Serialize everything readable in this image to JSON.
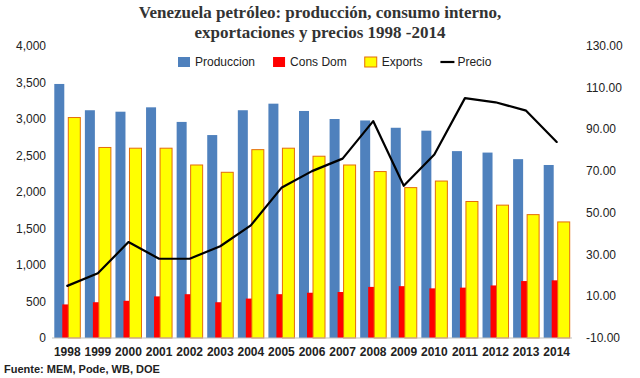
{
  "chart_data": {
    "type": "bar",
    "title": "Venezuela petróleo: producción, consumo interno, exportaciones y precios 1998 -2014",
    "source": "Fuente: MEM, Pode, WB, DOE",
    "categories": [
      "1998",
      "1999",
      "2000",
      "2001",
      "2002",
      "2003",
      "2004",
      "2005",
      "2006",
      "2007",
      "2008",
      "2009",
      "2010",
      "2011",
      "2012",
      "2013",
      "2014"
    ],
    "ylim": [
      0,
      4000
    ],
    "yticks": [
      0,
      500,
      {
        "value": 1000,
        "label": "1,000"
      },
      {
        "value": 1500,
        "label": "1,500"
      },
      {
        "value": 2000,
        "label": "2,000"
      },
      {
        "value": 2500,
        "label": "2,500"
      },
      {
        "value": 3000,
        "label": "3,000"
      },
      {
        "value": 3500,
        "label": "3,500"
      },
      {
        "value": 4000,
        "label": "4,000"
      }
    ],
    "y2lim": [
      -10,
      130
    ],
    "y2ticks": [
      {
        "value": -10,
        "label": "-10.00"
      },
      {
        "value": 10,
        "label": "10.00"
      },
      {
        "value": 30,
        "label": "30.00"
      },
      {
        "value": 50,
        "label": "50.00"
      },
      {
        "value": 70,
        "label": "70.00"
      },
      {
        "value": 90,
        "label": "90.00"
      },
      {
        "value": 110,
        "label": "110.00"
      },
      {
        "value": 130,
        "label": "130.00"
      }
    ],
    "grid": false,
    "legend": "top",
    "series": [
      {
        "name": "Produccion",
        "type": "bar",
        "color": "#4f81bd",
        "values": [
          3480,
          3120,
          3100,
          3160,
          2960,
          2780,
          3120,
          3210,
          3110,
          3000,
          2980,
          2880,
          2840,
          2560,
          2540,
          2450,
          2370
        ]
      },
      {
        "name": "Cons Dom",
        "type": "bar",
        "color": "#ff0000",
        "values": [
          460,
          490,
          510,
          570,
          600,
          490,
          540,
          600,
          620,
          630,
          700,
          710,
          680,
          690,
          720,
          780,
          790
        ]
      },
      {
        "name": "Exports",
        "type": "bar",
        "color": "#ffff00",
        "values": [
          3020,
          2610,
          2600,
          2600,
          2370,
          2270,
          2580,
          2600,
          2490,
          2370,
          2280,
          2060,
          2150,
          1870,
          1820,
          1690,
          1590
        ]
      },
      {
        "name": "Precio",
        "type": "line",
        "axis": "y2",
        "color": "#000000",
        "values": [
          15,
          21,
          36,
          28,
          28,
          34,
          44,
          62,
          70,
          76,
          94,
          63,
          78,
          105,
          103,
          99,
          84
        ]
      }
    ]
  }
}
